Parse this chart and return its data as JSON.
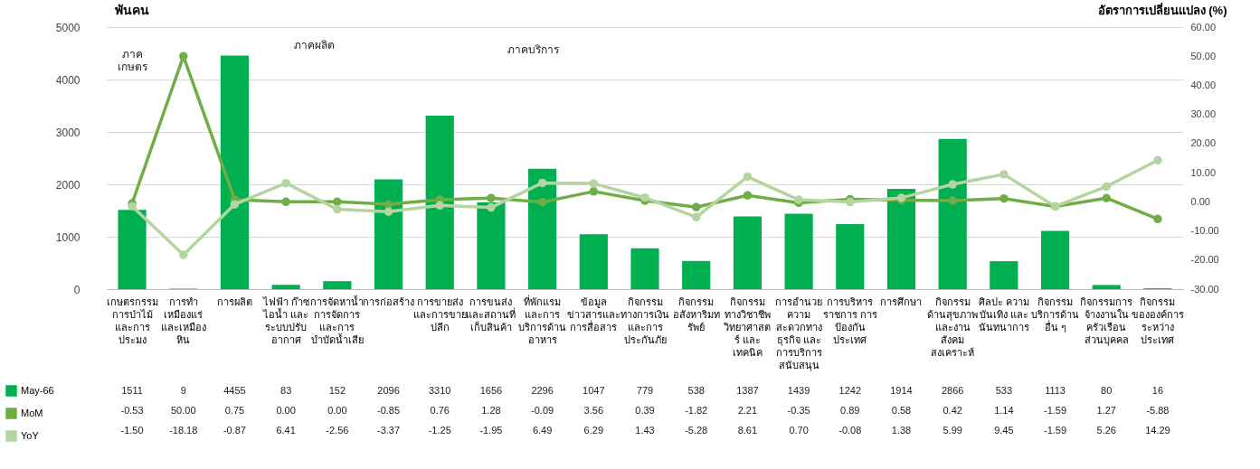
{
  "chart_data": {
    "type": "bar",
    "ylabel": "พันคน",
    "y2label": "อัตราการเปลี่ยนแปลง (%)",
    "categories": [
      "เกษตรกรรม\nการป่าไม้\nและการ\nประมง",
      "การทำ\nเหมืองแร่\nและเหมือง\nหิน",
      "การผลิต",
      "ไฟฟ้า ก๊าซ\nไอน้ำ และ\nระบบปรับ\nอากาศ",
      "การจัดหาน้ำ\nการจัดการ\nและการ\nบำบัดน้ำเสีย",
      "การก่อสร้าง",
      "การขายส่ง\nและการขาย\nปลีก",
      "การขนส่ง\nและสถานที่\nเก็บสินค้า",
      "ที่พักแรม\nและการ\nบริการด้าน\nอาหาร",
      "ข้อมูล\nข่าวสารและ\nการสื่อสาร",
      "กิจกรรม\nทางการเงิน\nและการ\nประกันภัย",
      "กิจกรรม\nอสังหาริมท\nรัพย์",
      "กิจกรรม\nทางวิชาชีพ\nวิทยาศาสต\nร์ และ\nเทคนิค",
      "การอำนวย\nความ\nสะดวกทาง\nธุรกิจ และ\nการบริการ\nสนับสนุน",
      "การบริหาร\nราชการ การ\nป้องกัน\nประเทศ",
      "การศึกษา",
      "กิจกรรม\nด้านสุขภาพ\nและงาน\nสังคม\nสงเคราะห์",
      "ศิลปะ ความ\nบันเทิง และ\nนันทนาการ",
      "กิจกรรม\nบริการด้าน\nอื่น ๆ",
      "กิจกรรมการ\nจ้างงานใน\nครัวเรือน\nส่วนบุคคล",
      "กิจกรรม\nขององค์การ\nระหว่าง\nประเทศ"
    ],
    "series": [
      {
        "name": "May-66",
        "color": "#00b050",
        "values": [
          1511,
          9,
          4455,
          83,
          152,
          2096,
          3310,
          1656,
          2296,
          1047,
          779,
          538,
          1387,
          1439,
          1242,
          1914,
          2866,
          533,
          1113,
          80,
          16
        ],
        "value_labels": [
          "1511",
          "9",
          "4455",
          "83",
          "152",
          "2096",
          "3310",
          "1656",
          "2296",
          "1047",
          "779",
          "538",
          "1387",
          "1439",
          "1242",
          "1914",
          "2866",
          "533",
          "1113",
          "80",
          "16"
        ]
      },
      {
        "name": "MoM",
        "type": "line",
        "axis": "y2",
        "color": "#70ad47",
        "values": [
          -0.53,
          50.0,
          0.75,
          0.0,
          0.0,
          -0.85,
          0.76,
          1.28,
          -0.09,
          3.56,
          0.39,
          -1.82,
          2.21,
          -0.35,
          0.89,
          0.58,
          0.42,
          1.14,
          -1.59,
          1.27,
          -5.88
        ],
        "value_labels": [
          "-0.53",
          "50.00",
          "0.75",
          "0.00",
          "0.00",
          "-0.85",
          "0.76",
          "1.28",
          "-0.09",
          "3.56",
          "0.39",
          "-1.82",
          "2.21",
          "-0.35",
          "0.89",
          "0.58",
          "0.42",
          "1.14",
          "-1.59",
          "1.27",
          "-5.88"
        ]
      },
      {
        "name": "YoY",
        "type": "line",
        "axis": "y2",
        "color": "#b4d59f",
        "values": [
          -1.5,
          -18.18,
          -0.87,
          6.41,
          -2.56,
          -3.37,
          -1.25,
          -1.95,
          6.49,
          6.29,
          1.43,
          -5.28,
          8.61,
          0.7,
          -0.08,
          1.38,
          5.99,
          9.45,
          -1.59,
          5.26,
          14.29
        ],
        "value_labels": [
          "-1.50",
          "-18.18",
          "-0.87",
          "6.41",
          "-2.56",
          "-3.37",
          "-1.25",
          "-1.95",
          "6.49",
          "6.29",
          "1.43",
          "-5.28",
          "8.61",
          "0.70",
          "-0.08",
          "1.38",
          "5.99",
          "9.45",
          "-1.59",
          "5.26",
          "14.29"
        ]
      }
    ],
    "ylim": [
      0,
      5000
    ],
    "yticks": [
      0,
      1000,
      2000,
      3000,
      4000,
      5000
    ],
    "y2lim": [
      -30,
      60
    ],
    "y2ticks": [
      {
        "value": -30,
        "label": "-30.00"
      },
      {
        "value": -20,
        "label": "-20.00"
      },
      {
        "value": -10,
        "label": "-10.00"
      },
      {
        "value": 0,
        "label": "0.00"
      },
      {
        "value": 10,
        "label": "10.00"
      },
      {
        "value": 20,
        "label": "20.00"
      },
      {
        "value": 30,
        "label": "30.00"
      },
      {
        "value": 40,
        "label": "40.00"
      },
      {
        "value": 50,
        "label": "50.00"
      },
      {
        "value": 60,
        "label": "60.00"
      }
    ],
    "grid": "y",
    "marker": "circle",
    "line_style": "solid",
    "legend": "bottom left",
    "annotations": [
      "ภาค\nเกษตร",
      "ภาคผลิต",
      "ภาคบริการ"
    ]
  }
}
